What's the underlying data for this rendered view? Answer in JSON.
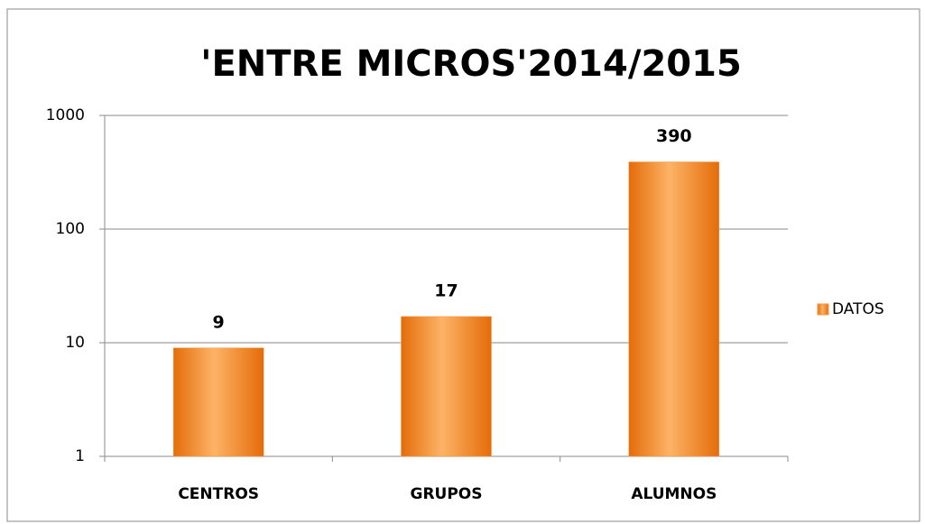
{
  "chart_data": {
    "type": "bar",
    "title": "'ENTRE MICROS'2014/2015",
    "categories": [
      "CENTROS",
      "GRUPOS",
      "ALUMNOS"
    ],
    "series": [
      {
        "name": "DATOS",
        "color": "#f79646",
        "values": [
          9,
          17,
          390
        ]
      }
    ],
    "ylim": [
      1,
      1000
    ],
    "yticks": [
      1,
      10,
      100,
      1000
    ],
    "log_scale": true,
    "grid": true,
    "legend": "right"
  }
}
